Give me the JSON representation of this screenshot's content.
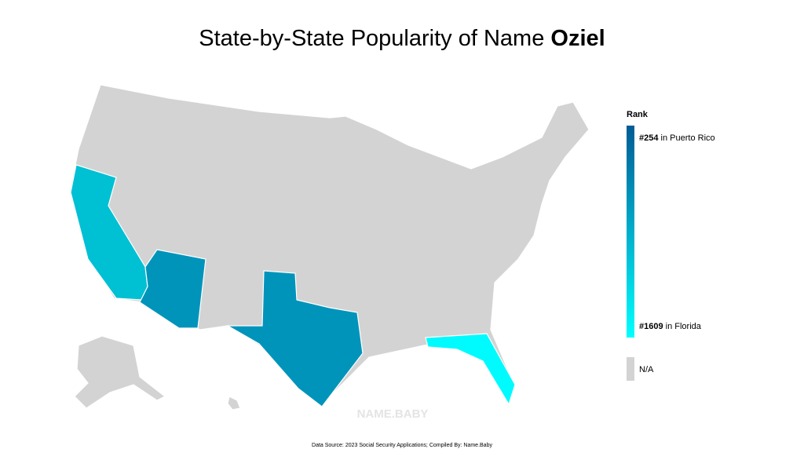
{
  "title": {
    "text": "State-by-State Popularity of Name ",
    "name": "Oziel"
  },
  "legend": {
    "title": "Rank",
    "top": {
      "rank": "#254",
      "place": " in Puerto Rico"
    },
    "bottom": {
      "rank": "#1609",
      "place": " in Florida"
    },
    "na": "N/A",
    "gradient": [
      "#005c96",
      "#00ffff"
    ],
    "na_color": "#d3d3d3"
  },
  "map": {
    "base_color": "#d3d3d3",
    "regions": {
      "california": {
        "color": "#00c0d4"
      },
      "arizona": {
        "color": "#0094bb"
      },
      "texas": {
        "color": "#0094bb"
      },
      "florida": {
        "color": "#00fbff"
      }
    }
  },
  "watermark": "NAME.BABY",
  "source": "Data Source: 2023 Social Security Applications; Compiled By: Name.Baby"
}
